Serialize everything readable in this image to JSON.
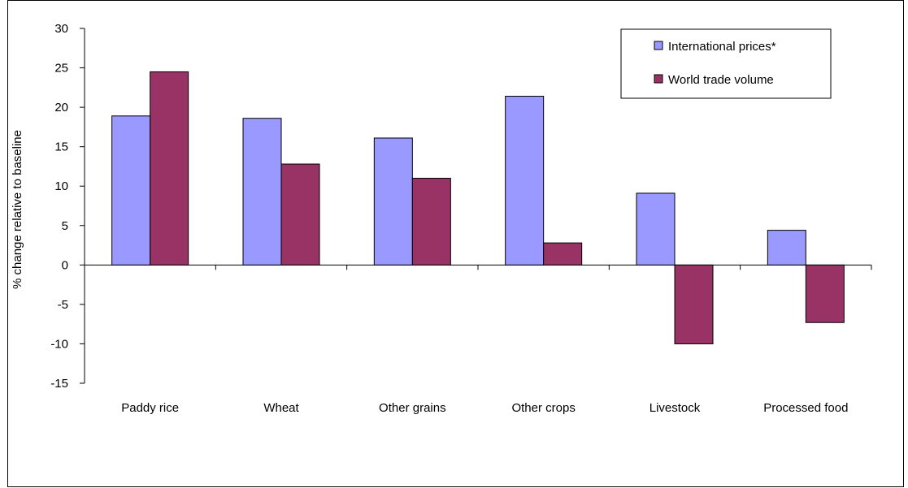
{
  "chart_data": {
    "type": "bar",
    "title": "",
    "xlabel": "",
    "ylabel": "% change relative to baseline",
    "ylim": [
      -15,
      30
    ],
    "yticks": [
      30,
      25,
      20,
      15,
      10,
      5,
      0,
      -5,
      -10,
      -15
    ],
    "categories": [
      "Paddy rice",
      "Wheat",
      "Other grains",
      "Other crops",
      "Livestock",
      "Processed food"
    ],
    "series": [
      {
        "name": "International prices*",
        "color": "#9999ff",
        "values": [
          18.9,
          18.6,
          16.1,
          21.4,
          9.1,
          4.4
        ]
      },
      {
        "name": "World trade volume",
        "color": "#993366",
        "values": [
          24.5,
          12.8,
          11.0,
          2.8,
          -10.0,
          -7.3
        ]
      }
    ],
    "legend": {
      "placement": "top-right"
    },
    "grid": false
  }
}
